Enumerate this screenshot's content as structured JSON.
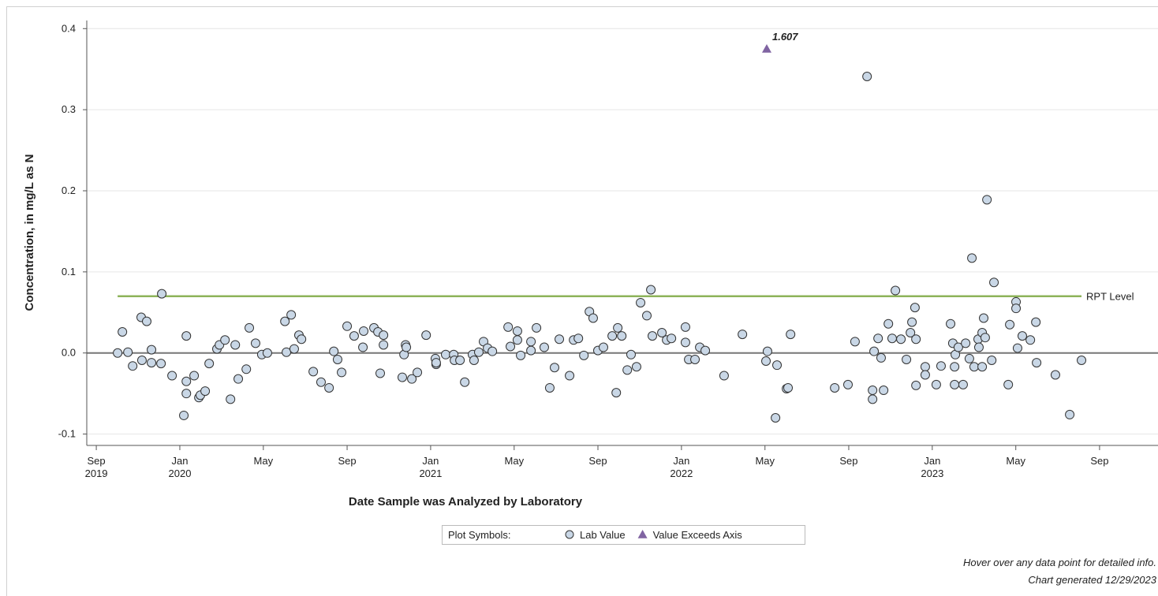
{
  "chart_data": {
    "type": "scatter",
    "x_label": "Date Sample was Analyzed by Laboratory",
    "y_label": "Concentration, in mg/L as N",
    "xlim": [
      2019.629,
      2023.9
    ],
    "ylim": [
      -0.114,
      0.41
    ],
    "xticks": [
      {
        "value": 2019.667,
        "label": "Sep 2019"
      },
      {
        "value": 2020.0,
        "label": "Jan 2020"
      },
      {
        "value": 2020.333,
        "label": "May"
      },
      {
        "value": 2020.667,
        "label": "Sep"
      },
      {
        "value": 2021.0,
        "label": "Jan 2021"
      },
      {
        "value": 2021.333,
        "label": "May"
      },
      {
        "value": 2021.667,
        "label": "Sep"
      },
      {
        "value": 2022.0,
        "label": "Jan 2022"
      },
      {
        "value": 2022.333,
        "label": "May"
      },
      {
        "value": 2022.667,
        "label": "Sep"
      },
      {
        "value": 2023.0,
        "label": "Jan 2023"
      },
      {
        "value": 2023.333,
        "label": "May"
      },
      {
        "value": 2023.667,
        "label": "Sep"
      }
    ],
    "yticks": [
      -0.1,
      {
        "value": 0,
        "label": "0.0"
      },
      0.1,
      0.2,
      0.3,
      0.4
    ],
    "grid": true,
    "legend_title": "Plot Symbols:",
    "reference_line": {
      "label": "RPT Level",
      "value": 0.07,
      "color": "#8db35a"
    },
    "series": [
      {
        "name": "Lab Value",
        "color": "#c9d7e6",
        "x": [
          2019.752,
          2019.771,
          2019.793,
          2019.812,
          2019.846,
          2019.849,
          2019.868,
          2019.887,
          2019.887,
          2019.925,
          2019.928,
          2019.969,
          2020.016,
          2020.026,
          2020.026,
          2020.026,
          2020.057,
          2020.076,
          2020.082,
          2020.101,
          2020.117,
          2020.148,
          2020.158,
          2020.18,
          2020.202,
          2020.221,
          2020.233,
          2020.265,
          2020.277,
          2020.302,
          2020.327,
          2020.349,
          2020.419,
          2020.425,
          2020.444,
          2020.456,
          2020.475,
          2020.485,
          2020.532,
          2020.563,
          2020.595,
          2020.614,
          2020.629,
          2020.645,
          2020.667,
          2020.695,
          2020.73,
          2020.733,
          2020.774,
          2020.79,
          2020.799,
          2020.812,
          2020.812,
          2020.887,
          2020.894,
          2020.9,
          2020.903,
          2020.925,
          2020.947,
          2020.982,
          2021.019,
          2021.022,
          2021.022,
          2021.06,
          2021.092,
          2021.095,
          2021.117,
          2021.136,
          2021.167,
          2021.173,
          2021.192,
          2021.211,
          2021.227,
          2021.246,
          2021.309,
          2021.318,
          2021.346,
          2021.346,
          2021.359,
          2021.4,
          2021.4,
          2021.422,
          2021.453,
          2021.475,
          2021.494,
          2021.513,
          2021.554,
          2021.57,
          2021.589,
          2021.611,
          2021.633,
          2021.648,
          2021.667,
          2021.689,
          2021.724,
          2021.74,
          2021.746,
          2021.762,
          2021.784,
          2021.799,
          2021.821,
          2021.837,
          2021.862,
          2021.878,
          2021.884,
          2021.922,
          2021.941,
          2021.96,
          2022.016,
          2022.016,
          2022.029,
          2022.054,
          2022.073,
          2022.095,
          2022.17,
          2022.243,
          2022.337,
          2022.343,
          2022.375,
          2022.381,
          2022.419,
          2022.425,
          2022.435,
          2022.611,
          2022.664,
          2022.692,
          2022.74,
          2022.762,
          2022.762,
          2022.768,
          2022.784,
          2022.796,
          2022.806,
          2022.825,
          2022.84,
          2022.853,
          2022.875,
          2022.897,
          2022.913,
          2022.919,
          2022.931,
          2022.935,
          2022.935,
          2022.972,
          2022.972,
          2023.016,
          2023.035,
          2023.073,
          2023.082,
          2023.089,
          2023.089,
          2023.092,
          2023.104,
          2023.123,
          2023.133,
          2023.148,
          2023.158,
          2023.167,
          2023.183,
          2023.186,
          2023.199,
          2023.199,
          2023.205,
          2023.211,
          2023.218,
          2023.237,
          2023.246,
          2023.303,
          2023.309,
          2023.334,
          2023.334,
          2023.34,
          2023.359,
          2023.391,
          2023.413,
          2023.416,
          2023.491,
          2023.548,
          2023.595
        ],
        "values": [
          0,
          0.026,
          0.001,
          -0.016,
          0.044,
          -0.009,
          0.039,
          0.004,
          -0.012,
          -0.013,
          0.073,
          -0.028,
          -0.077,
          0.021,
          -0.05,
          -0.035,
          -0.028,
          -0.055,
          -0.052,
          -0.047,
          -0.013,
          0.005,
          0.01,
          0.016,
          -0.057,
          0.01,
          -0.032,
          -0.02,
          0.031,
          0.012,
          -0.002,
          0,
          0.039,
          0.001,
          0.047,
          0.005,
          0.022,
          0.017,
          -0.023,
          -0.036,
          -0.043,
          0.002,
          -0.008,
          -0.024,
          0.033,
          0.021,
          0.007,
          0.027,
          0.031,
          0.026,
          -0.025,
          0.022,
          0.01,
          -0.03,
          -0.002,
          0.01,
          0.007,
          -0.032,
          -0.024,
          0.022,
          -0.007,
          -0.014,
          -0.012,
          -0.002,
          -0.002,
          -0.009,
          -0.009,
          -0.036,
          -0.002,
          -0.009,
          0.001,
          0.014,
          0.006,
          0.002,
          0.032,
          0.008,
          0.027,
          0.016,
          -0.003,
          0.014,
          0.003,
          0.031,
          0.007,
          -0.043,
          -0.018,
          0.017,
          -0.028,
          0.016,
          0.018,
          -0.003,
          0.051,
          0.043,
          0.003,
          0.007,
          0.021,
          -0.049,
          0.031,
          0.021,
          -0.021,
          -0.002,
          -0.017,
          0.062,
          0.046,
          0.078,
          0.021,
          0.025,
          0.016,
          0.018,
          0.032,
          0.013,
          -0.008,
          -0.008,
          0.007,
          0.003,
          -0.028,
          0.023,
          -0.01,
          0.002,
          -0.08,
          -0.015,
          -0.044,
          -0.043,
          0.023,
          -0.043,
          -0.039,
          0.014,
          0.341,
          -0.057,
          -0.046,
          0.002,
          0.018,
          -0.006,
          -0.046,
          0.036,
          0.018,
          0.077,
          0.017,
          -0.008,
          0.025,
          0.038,
          0.056,
          0.017,
          -0.04,
          -0.017,
          -0.027,
          -0.039,
          -0.016,
          0.036,
          0.012,
          -0.039,
          -0.017,
          -0.002,
          0.007,
          -0.039,
          0.012,
          -0.007,
          0.117,
          -0.017,
          0.017,
          0.007,
          0.025,
          -0.017,
          0.043,
          0.019,
          0.189,
          -0.009,
          0.087,
          -0.039,
          0.035,
          0.063,
          0.055,
          0.006,
          0.021,
          0.016,
          0.038,
          -0.012,
          -0.027,
          -0.076,
          -0.009
        ]
      },
      {
        "name": "Value Exceeds Axis",
        "color": "#8064a2",
        "marker": "triangle",
        "x": [
          2022.34
        ],
        "values": [
          1.607
        ],
        "value_labels": [
          "1.607"
        ]
      }
    ],
    "footnotes": [
      "Hover over any data point for detailed info.",
      "Chart generated 12/29/2023"
    ]
  }
}
